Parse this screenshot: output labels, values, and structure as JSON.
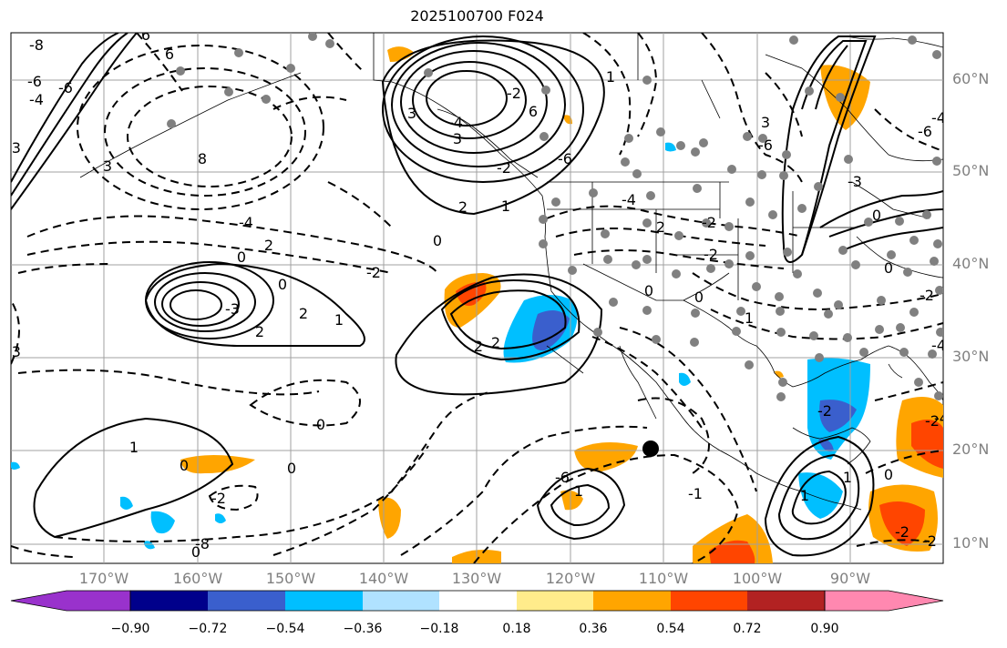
{
  "title": "2025100700 F024",
  "map": {
    "projection": "PlateCarree",
    "lon_range": [
      -180,
      -80
    ],
    "lat_range": [
      8,
      65
    ],
    "lat_labels": [
      "60°N",
      "50°N",
      "40°N",
      "30°N",
      "20°N",
      "10°N"
    ],
    "lon_labels": [
      "170°W",
      "160°W",
      "150°W",
      "140°W",
      "130°W",
      "120°W",
      "110°W",
      "100°W",
      "90°W"
    ],
    "contour_labels": [
      "-8",
      "-6",
      "-6",
      "-4",
      "6",
      "8",
      "6",
      "3",
      "-3",
      "6",
      "3",
      "-2",
      "3",
      "0",
      "-4",
      "2",
      "-2",
      "-2",
      "-4",
      "2",
      "-2",
      "0",
      "-3",
      "-6",
      "3",
      "-6",
      "-2",
      "2",
      "1",
      "-2",
      "2",
      "2",
      "2",
      "0",
      "1",
      "-8",
      "0",
      "2",
      "-6",
      "-4",
      "-2",
      "1",
      "0",
      "-6",
      "0",
      "-4",
      "1",
      "1",
      "0",
      "-4",
      "-2",
      "-1",
      "0",
      "0",
      "1",
      "1",
      "1",
      "0",
      "-2",
      "0",
      "-3",
      "-4",
      "-3",
      "0",
      "-2",
      "-2"
    ],
    "station_marker_color": "#808080",
    "highlight_marker_color": "#000000"
  },
  "colorbar": {
    "ticks": [
      "−0.90",
      "−0.72",
      "−0.54",
      "−0.36",
      "−0.18",
      "0.18",
      "0.36",
      "0.54",
      "0.72",
      "0.90"
    ],
    "colors": [
      "#9932CC",
      "#00008B",
      "#3A5FCD",
      "#00BFFF",
      "#B0E2FF",
      "#FFFFFF",
      "#FFEC8B",
      "#FFA500",
      "#FF4500",
      "#B22222",
      "#FF88B0"
    ]
  }
}
